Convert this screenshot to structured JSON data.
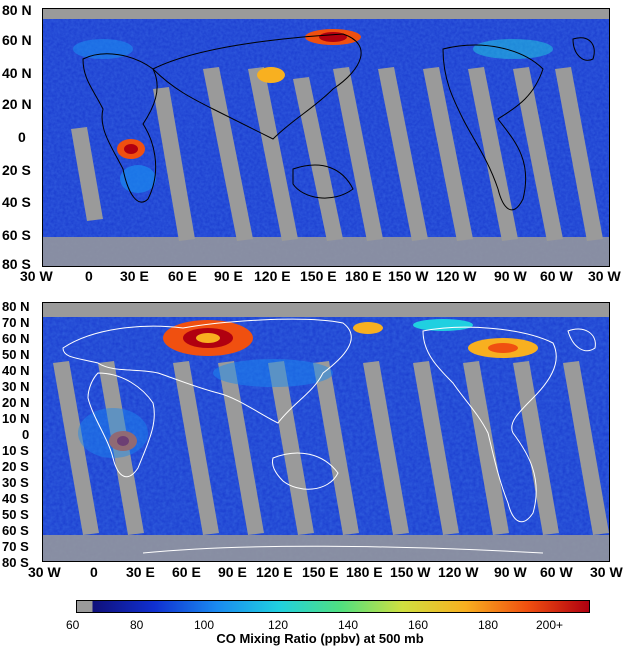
{
  "top_map": {
    "lat_labels": [
      "80 N",
      "60 N",
      "40 N",
      "20 N",
      "0",
      "20 S",
      "40 S",
      "60 S",
      "80 S"
    ],
    "lon_labels": [
      "30 W",
      "0",
      "30 E",
      "60 E",
      "90 E",
      "120 E",
      "150 E",
      "180 E",
      "150 W",
      "120 W",
      "90 W",
      "60 W",
      "30 W"
    ]
  },
  "bottom_map": {
    "lat_labels": [
      "80 N",
      "70 N",
      "60 N",
      "50 N",
      "40 N",
      "30 N",
      "20 N",
      "10 N",
      "0",
      "10 S",
      "20 S",
      "30 S",
      "40 S",
      "50 S",
      "60 S",
      "70 S",
      "80 S"
    ],
    "lon_labels": [
      "30 W",
      "0",
      "30 E",
      "60 E",
      "90 E",
      "120 E",
      "150 E",
      "180 E",
      "150 W",
      "120 W",
      "90 W",
      "60 W",
      "30 W"
    ]
  },
  "colorbar": {
    "tick_labels": [
      "60",
      "80",
      "100",
      "120",
      "140",
      "160",
      "180",
      "200+"
    ],
    "title": "CO Mixing Ratio (ppbv) at 500 mb",
    "colors": [
      "#9a9a9a",
      "#10107a",
      "#1030d0",
      "#1a8af0",
      "#20d0e0",
      "#50e080",
      "#d0e040",
      "#f8b020",
      "#f05010",
      "#b00010"
    ]
  }
}
